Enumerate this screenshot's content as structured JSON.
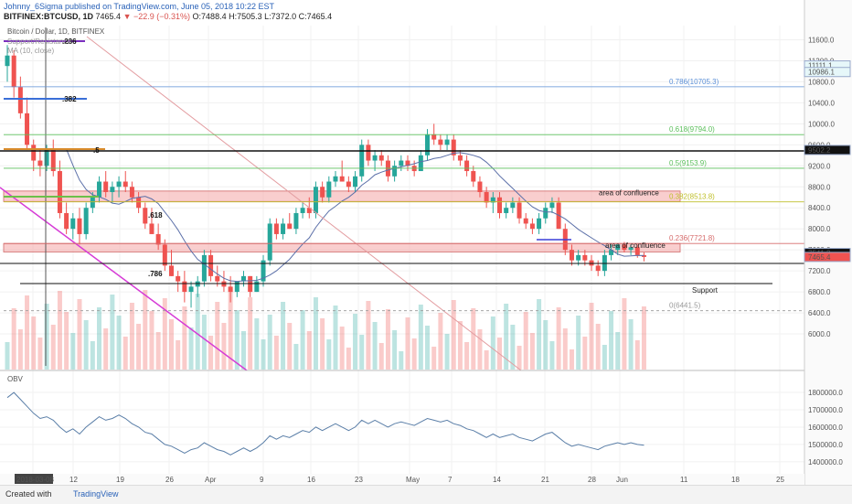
{
  "header": {
    "author_line": "Johnny_6Sigma published on TradingView.com, June 05, 2018 10:22 EST",
    "symbol": "BITFINEX:BTCUSD, 1D",
    "last": "7465.4",
    "change": "▼ −22.9 (−0.31%)",
    "ohlc": "O:7488.4 H:7505.3 L:7372.0 C:7465.4"
  },
  "legend": {
    "pair": "Bitcoin / Dollar, 1D, BITFINEX",
    "ma": "MA (10, close)",
    "sr": "Support/Resistance",
    "obv": "OBV"
  },
  "footer": {
    "created_with": "Created with",
    "brand": "TradingView"
  },
  "colors": {
    "up": "#26a69a",
    "down": "#ef5350",
    "ma": "#5b6fa8",
    "obv": "#5b7fa8",
    "zone": "#f4a6a6"
  },
  "chart_data": {
    "type": "candlestick",
    "price_axis": {
      "ylim": [
        5600,
        11800
      ],
      "ticks": [
        "11600.0",
        "11200.0",
        "10800.0",
        "10400.0",
        "10000.0",
        "9600.0",
        "9200.0",
        "8800.0",
        "8400.0",
        "8000.0",
        "7600.0",
        "7200.0",
        "6800.0",
        "6400.0",
        "6000.0"
      ]
    },
    "obv_axis": {
      "ylim": [
        1320000,
        1890000
      ],
      "ticks": [
        "1800000.0",
        "1700000.0",
        "1600000.0",
        "1500000.0",
        "1400000.0"
      ]
    },
    "x_ticks": [
      "2018-03-08",
      "12",
      "19",
      "26",
      "Apr",
      "9",
      "16",
      "23",
      "May",
      "7",
      "14",
      "21",
      "28",
      "Jun",
      "11",
      "18",
      "25"
    ],
    "price_labels": [
      "11111.1",
      "10986.1",
      "9502.2",
      "7541.2",
      "7465.4"
    ],
    "fib_levels": [
      {
        "label": "0.786(10705.3)",
        "value": 10705.3
      },
      {
        "label": "0.618(9794.0)",
        "value": 9794.0
      },
      {
        "label": "0.5(9153.9)",
        "value": 9153.9
      },
      {
        "label": "0.382(8513.8)",
        "value": 8513.8
      },
      {
        "label": "0.236(7721.8)",
        "value": 7721.8
      },
      {
        "label": "0(6441.5)",
        "value": 6441.5
      }
    ],
    "annotations": [
      "area of confluence",
      "area of confluence",
      "Support",
      ".236",
      ".382",
      ".5",
      ".618",
      ".786"
    ],
    "candles": [
      [
        11100,
        11500,
        10800,
        11300
      ],
      [
        11300,
        11400,
        10500,
        10700
      ],
      [
        10700,
        10900,
        10100,
        10200
      ],
      [
        10200,
        10500,
        9500,
        9600
      ],
      [
        9600,
        9700,
        9100,
        9300
      ],
      [
        9300,
        9500,
        9000,
        9200
      ],
      [
        9200,
        9600,
        9100,
        9500
      ],
      [
        9500,
        9700,
        9000,
        9100
      ],
      [
        9100,
        9300,
        8200,
        8300
      ],
      [
        8300,
        8500,
        7900,
        8000
      ],
      [
        8000,
        8300,
        7800,
        8200
      ],
      [
        8200,
        8400,
        7700,
        7900
      ],
      [
        7900,
        8500,
        7800,
        8400
      ],
      [
        8400,
        8700,
        8300,
        8600
      ],
      [
        8600,
        9000,
        8500,
        8900
      ],
      [
        8900,
        9100,
        8600,
        8700
      ],
      [
        8700,
        8900,
        8500,
        8800
      ],
      [
        8800,
        9000,
        8600,
        8900
      ],
      [
        8900,
        9100,
        8700,
        8800
      ],
      [
        8800,
        8900,
        8500,
        8600
      ],
      [
        8600,
        8700,
        8300,
        8400
      ],
      [
        8400,
        8500,
        8000,
        8100
      ],
      [
        8100,
        8400,
        7900,
        7900
      ],
      [
        7900,
        8100,
        7600,
        7700
      ],
      [
        7700,
        7800,
        7200,
        7300
      ],
      [
        7300,
        7600,
        7100,
        7100
      ],
      [
        7100,
        7200,
        6800,
        7000
      ],
      [
        7000,
        7200,
        6600,
        6800
      ],
      [
        6800,
        7000,
        6500,
        6900
      ],
      [
        6900,
        7100,
        6700,
        7000
      ],
      [
        7000,
        7600,
        6900,
        7500
      ],
      [
        7500,
        7600,
        7000,
        7100
      ],
      [
        7100,
        7300,
        6900,
        7000
      ],
      [
        7000,
        7200,
        6800,
        6900
      ],
      [
        6900,
        7100,
        6600,
        6800
      ],
      [
        6800,
        7000,
        6700,
        7000
      ],
      [
        7000,
        7200,
        6900,
        7100
      ],
      [
        7100,
        7100,
        6700,
        6800
      ],
      [
        6800,
        7100,
        6800,
        7000
      ],
      [
        7000,
        7500,
        6900,
        7400
      ],
      [
        7400,
        8200,
        7300,
        8100
      ],
      [
        8100,
        8200,
        7800,
        7900
      ],
      [
        7900,
        8200,
        7800,
        8100
      ],
      [
        8100,
        8300,
        8000,
        8000
      ],
      [
        8000,
        8400,
        7900,
        8300
      ],
      [
        8300,
        8500,
        8200,
        8400
      ],
      [
        8400,
        8600,
        8200,
        8300
      ],
      [
        8300,
        8900,
        8200,
        8800
      ],
      [
        8800,
        8900,
        8500,
        8600
      ],
      [
        8600,
        9000,
        8500,
        8900
      ],
      [
        8900,
        9100,
        8800,
        9000
      ],
      [
        9000,
        9300,
        8900,
        8900
      ],
      [
        8900,
        9000,
        8700,
        8800
      ],
      [
        8800,
        9100,
        8700,
        9000
      ],
      [
        9000,
        9700,
        8900,
        9600
      ],
      [
        9600,
        9700,
        9200,
        9300
      ],
      [
        9300,
        9500,
        9100,
        9400
      ],
      [
        9400,
        9500,
        9200,
        9300
      ],
      [
        9300,
        9400,
        8900,
        9000
      ],
      [
        9000,
        9300,
        8900,
        9200
      ],
      [
        9200,
        9400,
        9100,
        9300
      ],
      [
        9300,
        9400,
        9100,
        9200
      ],
      [
        9200,
        9300,
        9000,
        9100
      ],
      [
        9100,
        9500,
        9100,
        9400
      ],
      [
        9400,
        9900,
        9300,
        9800
      ],
      [
        9800,
        10000,
        9600,
        9700
      ],
      [
        9700,
        9800,
        9500,
        9600
      ],
      [
        9600,
        9800,
        9500,
        9700
      ],
      [
        9700,
        9800,
        9300,
        9400
      ],
      [
        9400,
        9500,
        9200,
        9300
      ],
      [
        9300,
        9400,
        9000,
        9100
      ],
      [
        9100,
        9200,
        8800,
        8900
      ],
      [
        8900,
        9000,
        8600,
        8700
      ],
      [
        8700,
        8800,
        8400,
        8500
      ],
      [
        8500,
        8700,
        8300,
        8600
      ],
      [
        8600,
        8700,
        8200,
        8300
      ],
      [
        8300,
        8500,
        8200,
        8400
      ],
      [
        8400,
        8600,
        8300,
        8500
      ],
      [
        8500,
        8600,
        8100,
        8200
      ],
      [
        8200,
        8300,
        8000,
        8100
      ],
      [
        8100,
        8200,
        7900,
        8000
      ],
      [
        8000,
        8300,
        7900,
        8200
      ],
      [
        8200,
        8500,
        8100,
        8400
      ],
      [
        8400,
        8600,
        8300,
        8500
      ],
      [
        8500,
        8600,
        8000,
        8000
      ],
      [
        8000,
        8100,
        7500,
        7600
      ],
      [
        7600,
        7700,
        7300,
        7400
      ],
      [
        7400,
        7600,
        7300,
        7500
      ],
      [
        7500,
        7600,
        7300,
        7400
      ],
      [
        7400,
        7500,
        7200,
        7300
      ],
      [
        7300,
        7400,
        7100,
        7200
      ],
      [
        7200,
        7600,
        7100,
        7500
      ],
      [
        7500,
        7700,
        7400,
        7600
      ],
      [
        7600,
        7700,
        7500,
        7700
      ],
      [
        7700,
        7750,
        7550,
        7600
      ],
      [
        7600,
        7700,
        7500,
        7650
      ],
      [
        7650,
        7700,
        7450,
        7500
      ],
      [
        7500,
        7550,
        7380,
        7465
      ]
    ],
    "obv": [
      1770000,
      1800000,
      1760000,
      1720000,
      1680000,
      1650000,
      1660000,
      1640000,
      1600000,
      1570000,
      1590000,
      1560000,
      1600000,
      1630000,
      1660000,
      1640000,
      1650000,
      1670000,
      1650000,
      1620000,
      1600000,
      1570000,
      1560000,
      1530000,
      1500000,
      1490000,
      1470000,
      1450000,
      1470000,
      1480000,
      1510000,
      1490000,
      1470000,
      1460000,
      1440000,
      1460000,
      1480000,
      1460000,
      1480000,
      1510000,
      1550000,
      1530000,
      1550000,
      1540000,
      1560000,
      1580000,
      1570000,
      1600000,
      1580000,
      1600000,
      1620000,
      1600000,
      1580000,
      1600000,
      1640000,
      1620000,
      1640000,
      1620000,
      1600000,
      1620000,
      1630000,
      1620000,
      1610000,
      1630000,
      1650000,
      1640000,
      1630000,
      1640000,
      1620000,
      1610000,
      1590000,
      1580000,
      1560000,
      1540000,
      1560000,
      1540000,
      1550000,
      1560000,
      1540000,
      1530000,
      1520000,
      1540000,
      1560000,
      1570000,
      1540000,
      1510000,
      1490000,
      1500000,
      1490000,
      1480000,
      1470000,
      1490000,
      1500000,
      1510000,
      1500000,
      1510000,
      1500000,
      1495000
    ]
  }
}
